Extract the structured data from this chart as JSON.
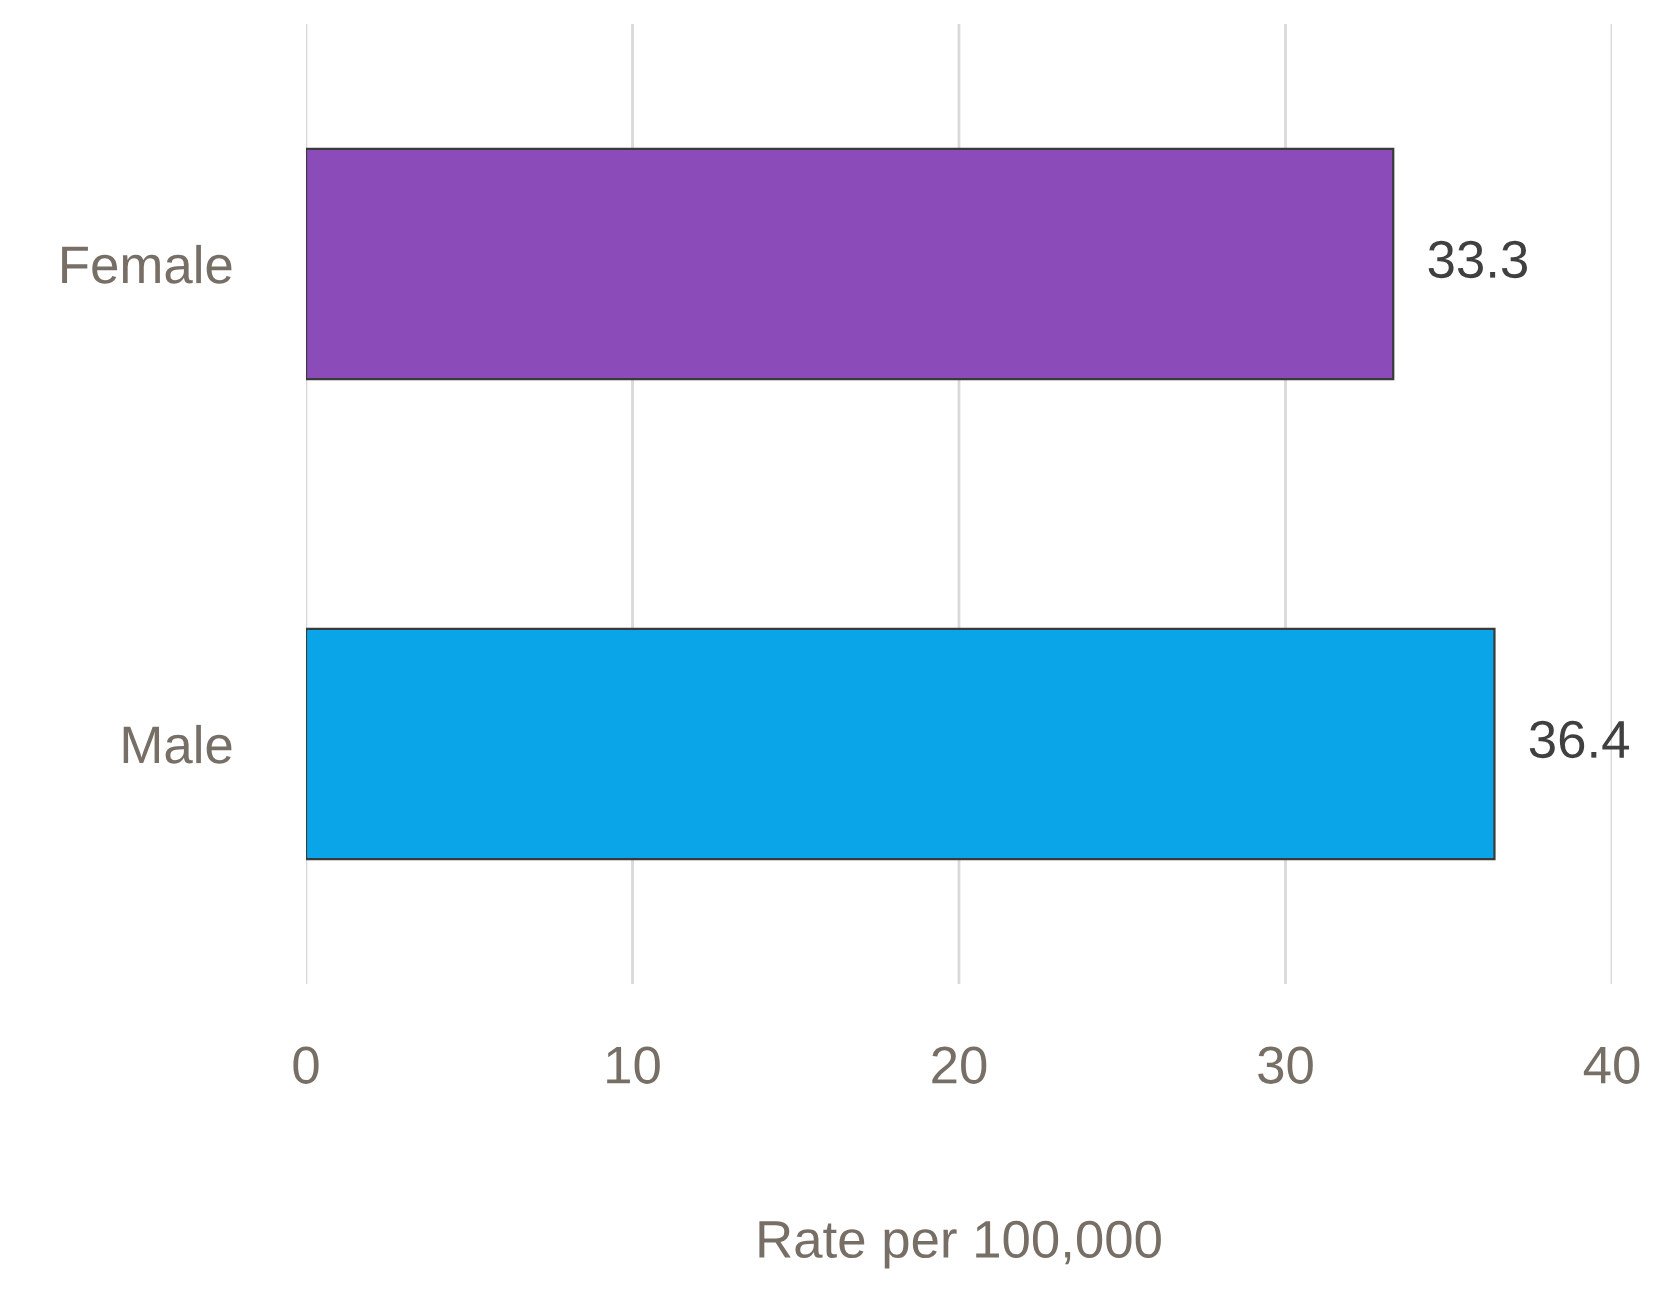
{
  "chart_data": {
    "type": "bar",
    "orientation": "horizontal",
    "categories": [
      "Female",
      "Male"
    ],
    "values": [
      33.3,
      36.4
    ],
    "colors": [
      "#8b4bb8",
      "#0aa5e8"
    ],
    "xlabel": "Rate per 100,000",
    "xlim": [
      0,
      40
    ],
    "xticks": [
      0,
      10,
      20,
      30,
      40
    ],
    "grid": "x",
    "data_labels": true
  }
}
